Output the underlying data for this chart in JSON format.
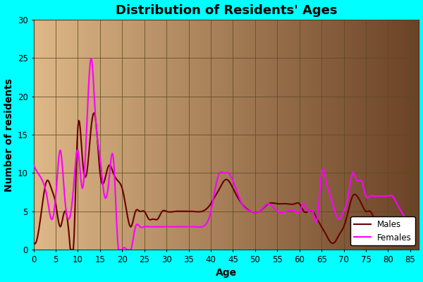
{
  "title": "Distribution of Residents' Ages",
  "xlabel": "Age",
  "ylabel": "Number of residents",
  "background_color": "#00FFFF",
  "plot_bg_gradient_left": "#DEB887",
  "plot_bg_gradient_right": "#6B4226",
  "line_color_males": "#6B0000",
  "line_color_females": "#FF00FF",
  "ylim": [
    0,
    30
  ],
  "xlim": [
    0,
    87
  ],
  "xticks": [
    0,
    5,
    10,
    15,
    20,
    25,
    30,
    35,
    40,
    45,
    50,
    55,
    60,
    65,
    70,
    75,
    80,
    85
  ],
  "yticks": [
    0,
    5,
    10,
    15,
    20,
    25,
    30
  ],
  "males_kx": [
    0,
    1,
    2,
    3,
    4,
    5,
    6,
    7,
    8,
    9,
    10,
    11,
    12,
    13,
    14,
    15,
    16,
    17,
    18,
    19,
    20,
    21,
    22,
    23,
    24,
    25,
    26,
    27,
    28,
    29,
    30,
    32,
    34,
    36,
    38,
    40,
    41,
    42,
    43,
    44,
    45,
    47,
    49,
    51,
    53,
    55,
    57,
    59,
    60,
    61,
    62,
    63,
    64,
    65,
    66,
    67,
    68,
    69,
    70,
    71,
    72,
    73,
    74,
    75,
    76,
    77,
    78,
    79,
    80,
    81,
    82,
    83,
    84,
    85,
    86
  ],
  "males_ky": [
    1,
    2,
    6,
    9,
    8,
    6,
    3,
    5,
    2,
    0,
    16,
    12,
    10,
    16,
    17,
    10,
    9,
    11,
    10,
    9,
    8,
    5,
    3,
    5,
    5,
    5,
    4,
    4,
    4,
    5,
    5,
    5,
    5,
    5,
    5,
    6,
    7,
    8,
    9,
    9,
    8,
    6,
    5,
    5,
    6,
    6,
    6,
    6,
    6,
    5,
    5,
    5,
    4,
    3,
    2,
    1,
    1,
    2,
    3,
    5,
    7,
    7,
    6,
    5,
    5,
    4,
    4,
    4,
    4,
    4,
    3,
    3,
    3,
    2,
    1
  ],
  "females_kx": [
    0,
    1,
    2,
    3,
    4,
    5,
    6,
    7,
    8,
    9,
    10,
    11,
    12,
    13,
    14,
    15,
    16,
    17,
    18,
    19,
    20,
    21,
    22,
    23,
    24,
    25,
    26,
    27,
    28,
    29,
    30,
    32,
    34,
    36,
    38,
    40,
    41,
    42,
    43,
    44,
    45,
    47,
    49,
    51,
    53,
    55,
    57,
    59,
    60,
    61,
    62,
    63,
    64,
    65,
    66,
    67,
    68,
    69,
    70,
    71,
    72,
    73,
    74,
    75,
    76,
    77,
    78,
    79,
    80,
    81,
    82,
    83,
    84,
    85,
    86
  ],
  "females_ky": [
    11,
    10,
    9,
    7,
    4,
    7,
    13,
    7,
    4,
    8,
    13,
    8,
    16,
    25,
    17,
    12,
    7,
    9,
    12,
    1,
    0,
    0,
    0,
    3,
    3,
    3,
    3,
    3,
    3,
    3,
    3,
    3,
    3,
    3,
    3,
    5,
    8,
    10,
    10,
    10,
    9,
    6,
    5,
    5,
    6,
    5,
    5,
    5,
    5,
    6,
    5,
    5,
    4,
    10,
    9,
    7,
    5,
    4,
    5,
    7,
    10,
    9,
    9,
    7,
    7,
    7,
    7,
    7,
    7,
    7,
    6,
    5,
    4,
    3,
    2
  ],
  "title_fontsize": 13,
  "axis_label_fontsize": 10,
  "linewidth": 1.5
}
